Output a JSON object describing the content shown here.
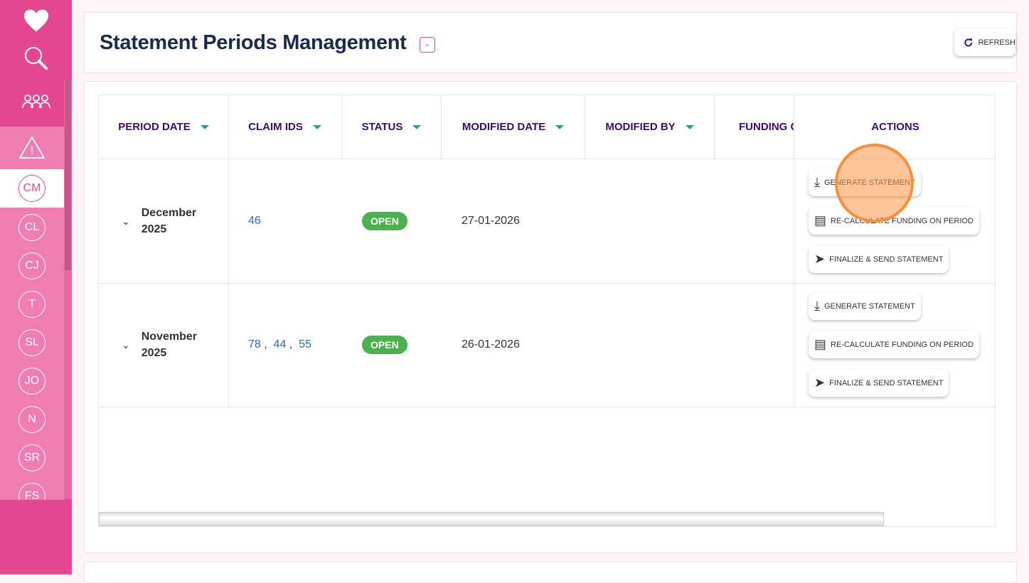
{
  "sidebar": {
    "top_icons": [
      "heart-icon",
      "search-icon",
      "users-icon",
      "alert-icon"
    ],
    "items": [
      {
        "label": "CM",
        "active": true
      },
      {
        "label": "CL"
      },
      {
        "label": "CJ"
      },
      {
        "label": "T"
      },
      {
        "label": "SL"
      },
      {
        "label": "JO"
      },
      {
        "label": "N"
      },
      {
        "label": "SR"
      },
      {
        "label": "FS"
      }
    ]
  },
  "header": {
    "title": "Statement Periods Management",
    "refresh_label": "REFRESH"
  },
  "table": {
    "columns": [
      "PERIOD DATE",
      "CLAIM IDS",
      "STATUS",
      "MODIFIED DATE",
      "MODIFIED BY",
      "FUNDING C",
      "ACTIONS"
    ],
    "rows": [
      {
        "period_line1": "December",
        "period_line2": "2025",
        "claim_ids": [
          "46"
        ],
        "status": "OPEN",
        "modified_date": "27-01-2026",
        "modified_by": ""
      },
      {
        "period_line1": "November",
        "period_line2": "2025",
        "claim_ids": [
          "78",
          "44",
          "55"
        ],
        "status": "OPEN",
        "modified_date": "26-01-2026",
        "modified_by": ""
      }
    ],
    "actions": {
      "generate": "GENERATE STATEMENT",
      "recalculate": "RE-CALCULATE FUNDING ON PERIOD",
      "finalize": "FINALIZE & SEND STATEMENT"
    }
  },
  "colors": {
    "brand": "#e4468f",
    "header_text": "#3d0a6e",
    "status_open": "#4caf50",
    "link": "#2e6da4"
  }
}
